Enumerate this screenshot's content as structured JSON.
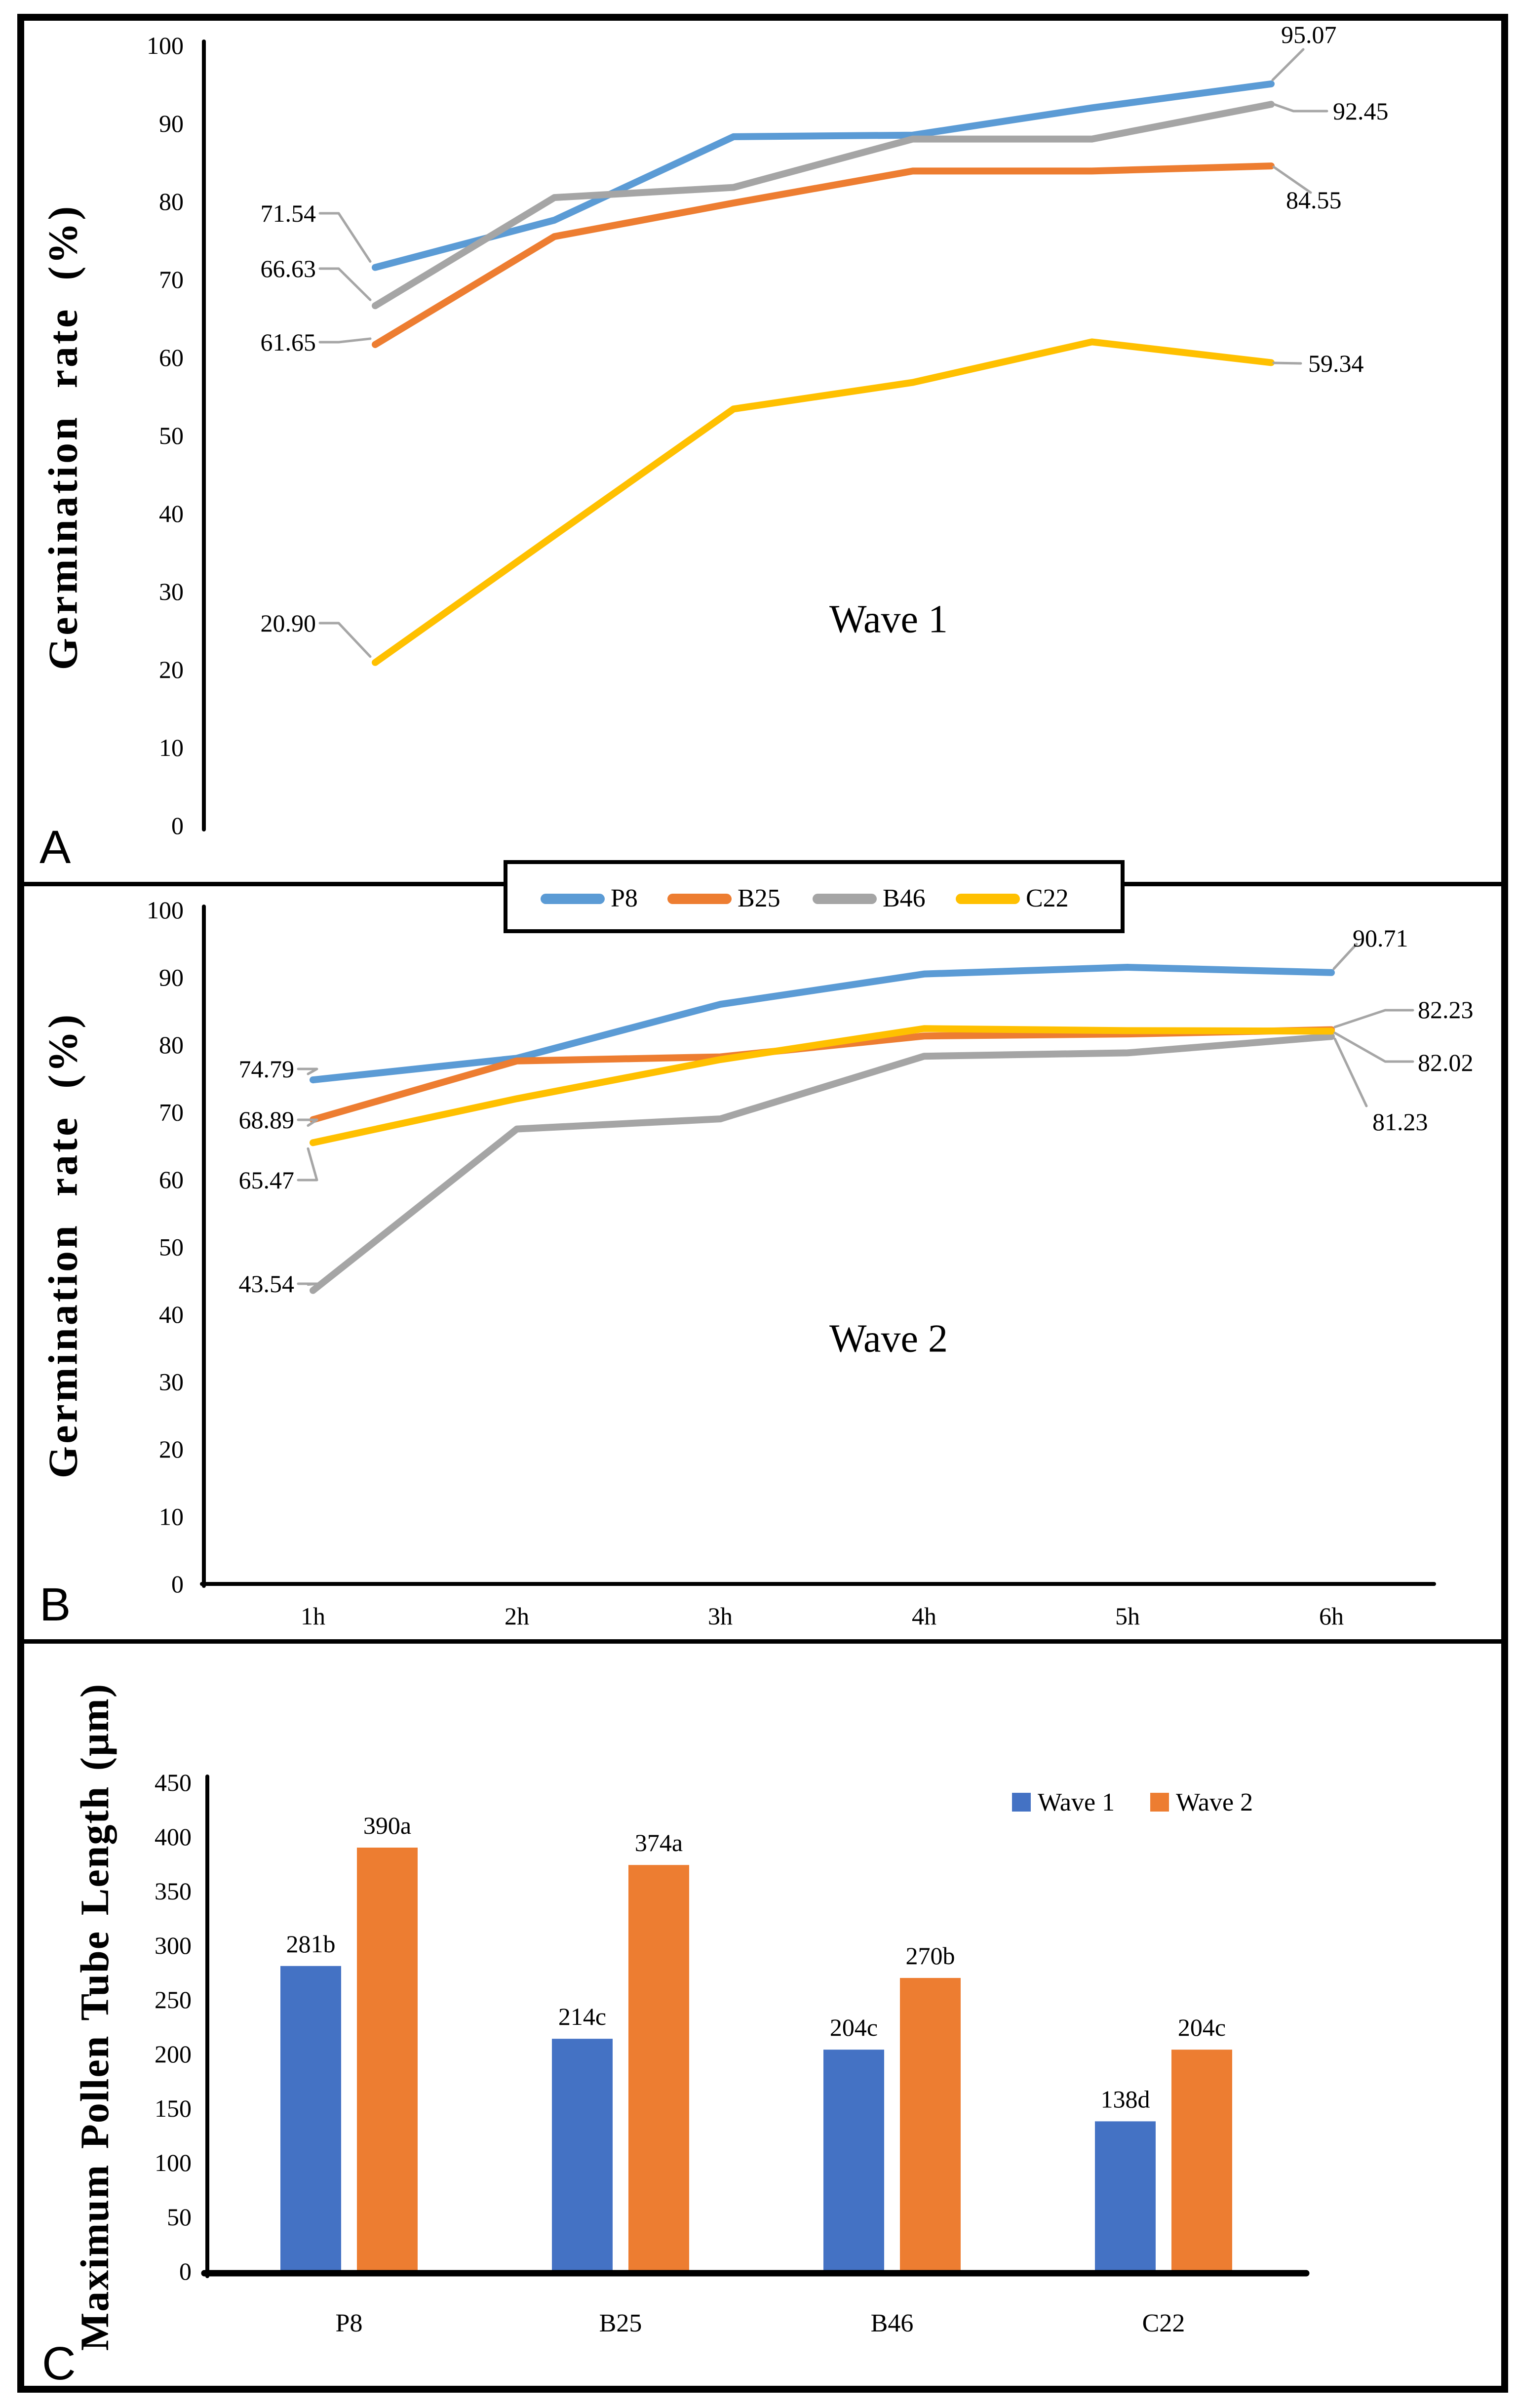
{
  "colors": {
    "p8": "#5B9BD5",
    "b25": "#ED7D31",
    "b46": "#A5A5A5",
    "c22": "#FFC000",
    "bar_wave1": "#4472C4",
    "bar_wave2": "#ED7D31",
    "leader": "#A6A6A6",
    "axis": "#000000"
  },
  "panel_a": {
    "letter": "A",
    "annotation": "Wave 1",
    "y_title": "Germination rate (%)"
  },
  "panel_b": {
    "letter": "B",
    "annotation": "Wave 2",
    "y_title": "Germination rate (%)"
  },
  "panel_c": {
    "letter": "C",
    "y_title": "Maximum Pollen Tube Length (μm)"
  },
  "legend_ab": {
    "items": [
      {
        "id": "p8",
        "label": "P8"
      },
      {
        "id": "b25",
        "label": "B25"
      },
      {
        "id": "b46",
        "label": "B46"
      },
      {
        "id": "c22",
        "label": "C22"
      }
    ]
  },
  "chart_data": [
    {
      "panel": "A",
      "type": "line",
      "title": "Wave 1",
      "ylabel": "Germination rate (%)",
      "ylim": [
        0,
        100
      ],
      "yticks": [
        0,
        10,
        20,
        30,
        40,
        50,
        60,
        70,
        80,
        90,
        100
      ],
      "x": [
        "1h",
        "2h",
        "3h",
        "4h",
        "5h",
        "6h"
      ],
      "x_labels_visible": false,
      "grid": false,
      "series": [
        {
          "name": "P8",
          "color_key": "p8",
          "values": [
            71.54,
            77.6,
            88.3,
            88.5,
            92.0,
            95.07
          ],
          "start_label": "71.54",
          "end_label": "95.07"
        },
        {
          "name": "B25",
          "color_key": "b25",
          "values": [
            61.65,
            75.5,
            79.8,
            83.9,
            83.9,
            84.55
          ],
          "start_label": "61.65",
          "end_label": "84.55"
        },
        {
          "name": "B46",
          "color_key": "b46",
          "values": [
            66.63,
            80.5,
            81.8,
            88.0,
            88.0,
            92.45
          ],
          "start_label": "66.63",
          "end_label": "92.45"
        },
        {
          "name": "C22",
          "color_key": "c22",
          "values": [
            20.9,
            37.2,
            53.4,
            56.8,
            62.0,
            59.34
          ],
          "start_label": "20.90",
          "end_label": "59.34"
        }
      ]
    },
    {
      "panel": "B",
      "type": "line",
      "title": "Wave 2",
      "ylabel": "Germination rate (%)",
      "ylim": [
        0,
        100
      ],
      "yticks": [
        0,
        10,
        20,
        30,
        40,
        50,
        60,
        70,
        80,
        90,
        100
      ],
      "x": [
        "1h",
        "2h",
        "3h",
        "4h",
        "5h",
        "6h"
      ],
      "x_labels_visible": true,
      "grid": false,
      "series": [
        {
          "name": "P8",
          "color_key": "p8",
          "values": [
            74.79,
            78.0,
            86.0,
            90.5,
            91.5,
            90.71
          ],
          "start_label": "74.79",
          "end_label": "90.71"
        },
        {
          "name": "B25",
          "color_key": "b25",
          "values": [
            68.89,
            77.6,
            78.2,
            81.3,
            81.6,
            82.23
          ],
          "start_label": "68.89",
          "end_label": "82.23"
        },
        {
          "name": "B46",
          "color_key": "b46",
          "values": [
            43.54,
            67.5,
            69.0,
            78.3,
            78.8,
            81.23
          ],
          "start_label": "43.54",
          "end_label": "81.23"
        },
        {
          "name": "C22",
          "color_key": "c22",
          "values": [
            65.47,
            72.0,
            77.8,
            82.4,
            82.1,
            82.02
          ],
          "start_label": "65.47",
          "end_label": "82.02"
        }
      ]
    },
    {
      "panel": "C",
      "type": "bar",
      "title": "",
      "ylabel": "Maximum Pollen Tube Length (μm)",
      "ylim": [
        0,
        450
      ],
      "yticks": [
        0,
        50,
        100,
        150,
        200,
        250,
        300,
        350,
        400,
        450
      ],
      "categories": [
        "P8",
        "B25",
        "B46",
        "C22"
      ],
      "legend_position": "upper right",
      "series": [
        {
          "name": "Wave 1",
          "color_key": "bar_wave1",
          "values": [
            281,
            214,
            204,
            138
          ],
          "labels": [
            "281b",
            "214c",
            "204c",
            "138d"
          ]
        },
        {
          "name": "Wave 2",
          "color_key": "bar_wave2",
          "values": [
            390,
            374,
            270,
            204
          ],
          "labels": [
            "390a",
            "374a",
            "270b",
            "204c"
          ]
        }
      ]
    }
  ]
}
